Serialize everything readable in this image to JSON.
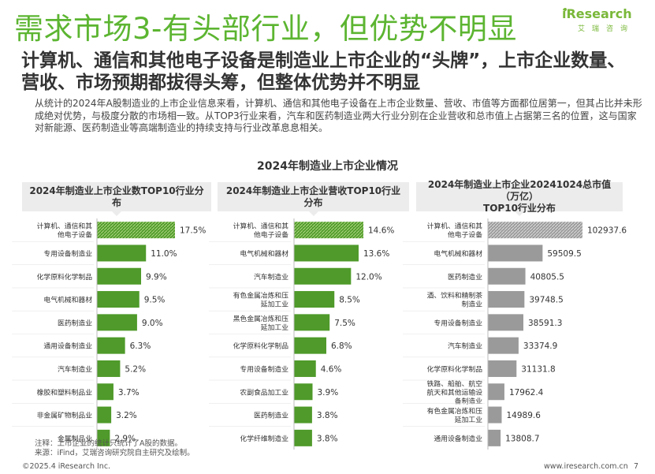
{
  "header": {
    "title": "需求市场3-有头部行业，但优势不明显",
    "logo_text": "iResearch",
    "logo_sub": "艾瑞咨询"
  },
  "subtitle": "计算机、通信和其他电子设备是制造业上市企业的“头牌”，上市企业数量、营收、市场预期都拔得头筹，但整体优势并不明显",
  "body": "从统计的2024年A股制造业的上市企业信息来看，计算机、通信和其他电子设备在上市企业数量、营收、市值等方面都位居第一，但其占比并未形成绝对优势，与极度分散的市场相一致。从TOP3行业来看，汽车和医药制造业两大行业分别在企业营收和总市值上占据第三名的位置，这与国家对新能源、医药制造业等高端制造业的持续支持与行业改革息息相关。",
  "chart_section_title": "2024年制造业上市企业情况",
  "colors": {
    "green_dark": "#4f9a2a",
    "green_light": "#a6d17a",
    "gray_dark": "#9a9a9a",
    "gray_light": "#d6d6d6",
    "title_green": "#5cb531"
  },
  "chart_data": [
    {
      "type": "bar",
      "orientation": "horizontal",
      "title": "2024年制造业上市企业数TOP10行业分布",
      "categories": [
        "计算机、通信和其他电子设备",
        "专用设备制造业",
        "化学原料化学制品",
        "电气机械和器材",
        "医药制造业",
        "通用设备制造业",
        "汽车制造业",
        "橡胶和塑料制品业",
        "非金属矿物制品业",
        "金属制品业"
      ],
      "category_lines": [
        [
          "计算机、通信和其",
          "他电子设备"
        ],
        [
          "专用设备制造业"
        ],
        [
          "化学原料化学制品"
        ],
        [
          "电气机械和器材"
        ],
        [
          "医药制造业"
        ],
        [
          "通用设备制造业"
        ],
        [
          "汽车制造业"
        ],
        [
          "橡胶和塑料制品业"
        ],
        [
          "非金属矿物制品业"
        ],
        [
          "金属制品业"
        ]
      ],
      "values": [
        17.5,
        11.0,
        9.9,
        9.5,
        9.0,
        6.3,
        5.2,
        3.7,
        3.2,
        2.9
      ],
      "labels": [
        "17.5%",
        "11.0%",
        "9.9%",
        "9.5%",
        "9.0%",
        "6.3%",
        "5.2%",
        "3.7%",
        "3.2%",
        "2.9%"
      ],
      "unit": "%",
      "color_scheme": "green"
    },
    {
      "type": "bar",
      "orientation": "horizontal",
      "title": "2024年制造业上市企业营收TOP10行业分布",
      "categories": [
        "计算机、通信和其他电子设备",
        "电气机械和器材",
        "汽车制造业",
        "有色金属冶炼和压延加工业",
        "黑色金属冶炼和压延加工业",
        "化学原料化学制品",
        "专用设备制造业",
        "农副食品加工业",
        "医药制造业",
        "化学纤维制造业"
      ],
      "category_lines": [
        [
          "计算机、通信和其",
          "他电子设备"
        ],
        [
          "电气机械和器材"
        ],
        [
          "汽车制造业"
        ],
        [
          "有色金属冶炼和压",
          "延加工业"
        ],
        [
          "黑色金属冶炼和压",
          "延加工业"
        ],
        [
          "化学原料化学制品"
        ],
        [
          "专用设备制造业"
        ],
        [
          "农副食品加工业"
        ],
        [
          "医药制造业"
        ],
        [
          "化学纤维制造业"
        ]
      ],
      "values": [
        14.6,
        13.6,
        12.0,
        8.5,
        7.5,
        6.8,
        4.6,
        3.9,
        3.8,
        3.8
      ],
      "labels": [
        "14.6%",
        "13.6%",
        "12.0%",
        "8.5%",
        "7.5%",
        "6.8%",
        "4.6%",
        "3.9%",
        "3.8%",
        "3.8%"
      ],
      "unit": "%",
      "color_scheme": "green"
    },
    {
      "type": "bar",
      "orientation": "horizontal",
      "title": "2024年制造业上市企业20241024总市值（万亿）TOP10行业分布",
      "title_lines": [
        "2024年制造业上市企业20241024总市值（万亿）",
        "TOP10行业分布"
      ],
      "categories": [
        "计算机、通信和其他电子设备",
        "电气机械和器材",
        "医药制造业",
        "酒、饮料和精制茶制造业",
        "专用设备制造业",
        "汽车制造业",
        "化学原料化学制品",
        "铁路、船舶、航空航天和其他运输设备制造业",
        "有色金属冶炼和压延加工业",
        "通用设备制造业"
      ],
      "category_lines": [
        [
          "计算机、通信和其",
          "他电子设备"
        ],
        [
          "电气机械和器材"
        ],
        [
          "医药制造业"
        ],
        [
          "酒、饮料和精制茶",
          "制造业"
        ],
        [
          "专用设备制造业"
        ],
        [
          "汽车制造业"
        ],
        [
          "化学原料化学制品"
        ],
        [
          "铁路、船舶、航空",
          "航天和其他运输设",
          "备制造业"
        ],
        [
          "有色金属冶炼和压",
          "延加工业"
        ],
        [
          "通用设备制造业"
        ]
      ],
      "values": [
        102937.6,
        59509.5,
        40805.5,
        39748.5,
        38591.3,
        33374.9,
        31131.8,
        17962.4,
        14989.6,
        13808.7
      ],
      "labels": [
        "102937.6",
        "59509.5",
        "40805.5",
        "39748.5",
        "38591.3",
        "33374.9",
        "31131.8",
        "17962.4",
        "14989.6",
        "13808.7"
      ],
      "color_scheme": "gray"
    }
  ],
  "notes": {
    "line1": "注释：上市企业的统计只统计了A股的数据。",
    "line2": "来源：iFind，艾瑞咨询研究院自主研究及绘制。"
  },
  "footer": {
    "copyright": "©2025.4 iResearch Inc.",
    "website": "www.iresearch.com.cn",
    "page": "7"
  }
}
